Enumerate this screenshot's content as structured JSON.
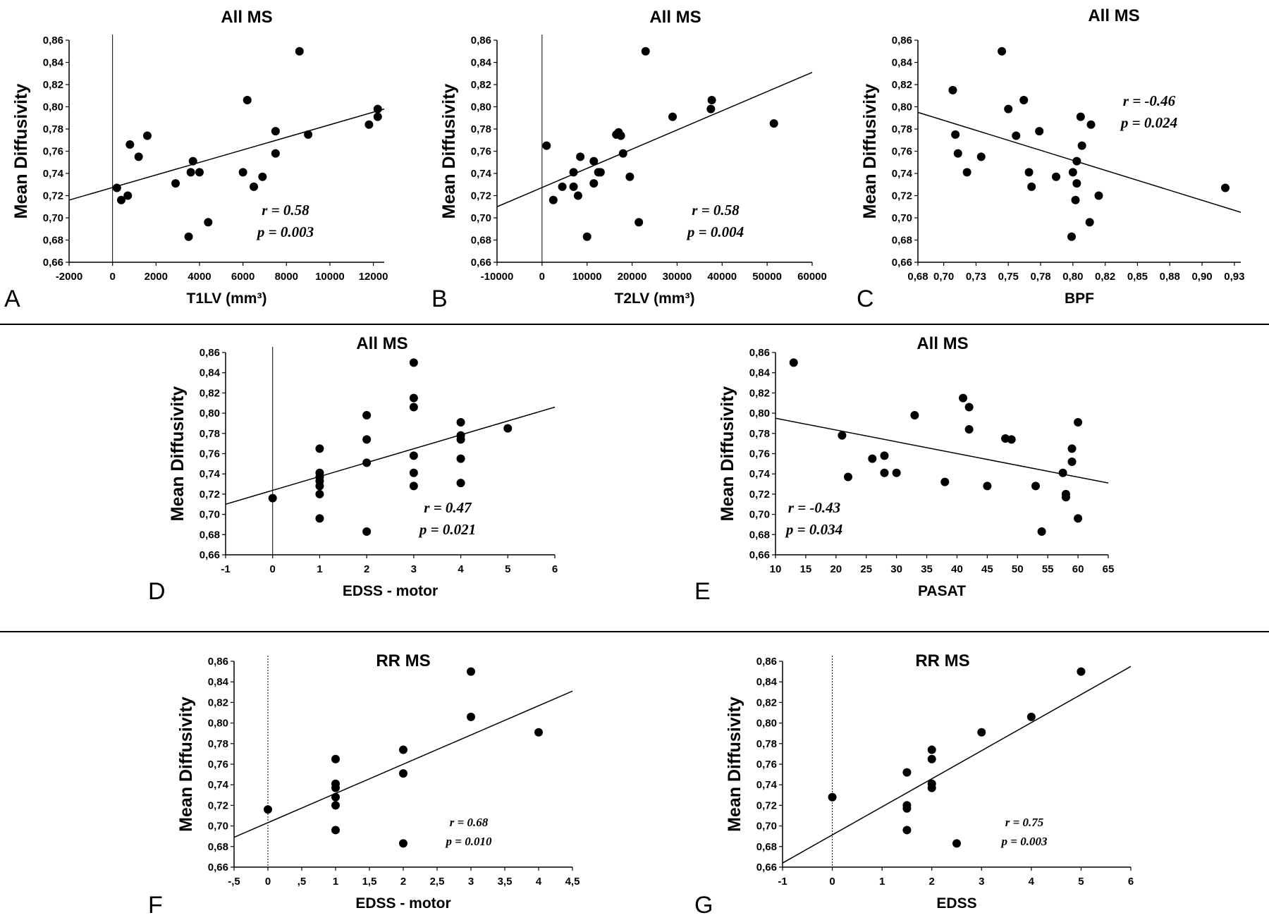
{
  "figure": {
    "separators": 2
  },
  "chart_data": [
    {
      "panel": "A",
      "type": "scatter",
      "title": "All MS",
      "xlabel": "T1LV (mm³)",
      "ylabel": "Mean Diffusivity",
      "xlim": [
        -2000,
        12500
      ],
      "ylim": [
        0.66,
        0.86
      ],
      "xticks": [
        -2000,
        0,
        2000,
        4000,
        6000,
        8000,
        10000,
        12000
      ],
      "xtick_labels": [
        "-2000",
        "0",
        "2000",
        "4000",
        "6000",
        "8000",
        "10000",
        "12000"
      ],
      "yticks": [
        0.66,
        0.68,
        0.7,
        0.72,
        0.74,
        0.76,
        0.78,
        0.8,
        0.82,
        0.84,
        0.86
      ],
      "ytick_labels": [
        "0,66",
        "0,68",
        "0,70",
        "0,72",
        "0,74",
        "0,76",
        "0,78",
        "0,80",
        "0,82",
        "0,84",
        "0,86"
      ],
      "vline": {
        "x": 0,
        "style": "solid"
      },
      "stats": [
        "r = 0.58",
        "p = 0.003"
      ],
      "stats_style": "bolditalic",
      "points": [
        [
          200,
          0.727
        ],
        [
          400,
          0.716
        ],
        [
          700,
          0.72
        ],
        [
          800,
          0.766
        ],
        [
          1200,
          0.755
        ],
        [
          1600,
          0.774
        ],
        [
          2900,
          0.731
        ],
        [
          3500,
          0.683
        ],
        [
          3600,
          0.741
        ],
        [
          3700,
          0.751
        ],
        [
          4000,
          0.741
        ],
        [
          4400,
          0.696
        ],
        [
          6000,
          0.741
        ],
        [
          6200,
          0.806
        ],
        [
          6500,
          0.728
        ],
        [
          6900,
          0.737
        ],
        [
          7500,
          0.758
        ],
        [
          7500,
          0.778
        ],
        [
          8600,
          0.85
        ],
        [
          9000,
          0.775
        ],
        [
          11800,
          0.784
        ],
        [
          12200,
          0.798
        ],
        [
          12200,
          0.791
        ]
      ],
      "fit": [
        [
          -2000,
          0.716
        ],
        [
          12500,
          0.798
        ]
      ]
    },
    {
      "panel": "B",
      "type": "scatter",
      "title": "All MS",
      "xlabel": "T2LV (mm³)",
      "ylabel": "Mean Diffusivity",
      "xlim": [
        -10000,
        60000
      ],
      "ylim": [
        0.66,
        0.86
      ],
      "xticks": [
        -10000,
        0,
        10000,
        20000,
        30000,
        40000,
        50000,
        60000
      ],
      "xtick_labels": [
        "-10000",
        "0",
        "10000",
        "20000",
        "30000",
        "40000",
        "50000",
        "60000"
      ],
      "yticks": [
        0.66,
        0.68,
        0.7,
        0.72,
        0.74,
        0.76,
        0.78,
        0.8,
        0.82,
        0.84,
        0.86
      ],
      "ytick_labels": [
        "0,66",
        "0,68",
        "0,70",
        "0,72",
        "0,74",
        "0,76",
        "0,78",
        "0,80",
        "0,82",
        "0,84",
        "0,86"
      ],
      "vline": {
        "x": 0,
        "style": "solid"
      },
      "stats": [
        "r = 0.58",
        "p = 0.004"
      ],
      "stats_style": "bolditalic",
      "points": [
        [
          1000,
          0.765
        ],
        [
          2500,
          0.716
        ],
        [
          4500,
          0.728
        ],
        [
          7000,
          0.741
        ],
        [
          7000,
          0.728
        ],
        [
          8000,
          0.72
        ],
        [
          8500,
          0.755
        ],
        [
          10000,
          0.683
        ],
        [
          11500,
          0.731
        ],
        [
          11500,
          0.751
        ],
        [
          12500,
          0.741
        ],
        [
          13000,
          0.741
        ],
        [
          16500,
          0.775
        ],
        [
          17000,
          0.777
        ],
        [
          17500,
          0.774
        ],
        [
          18000,
          0.758
        ],
        [
          19500,
          0.737
        ],
        [
          21500,
          0.696
        ],
        [
          23000,
          0.85
        ],
        [
          29000,
          0.791
        ],
        [
          37500,
          0.798
        ],
        [
          37700,
          0.806
        ],
        [
          51500,
          0.785
        ]
      ],
      "fit": [
        [
          -10000,
          0.71
        ],
        [
          60000,
          0.831
        ]
      ]
    },
    {
      "panel": "C",
      "type": "scatter",
      "title": "All MS",
      "xlabel": "BPF",
      "ylabel": "Mean Diffusivity",
      "xlim": [
        0.68,
        0.93
      ],
      "ylim": [
        0.66,
        0.86
      ],
      "xticks": [
        0.68,
        0.7,
        0.725,
        0.75,
        0.775,
        0.8,
        0.825,
        0.85,
        0.875,
        0.9,
        0.925
      ],
      "xtick_labels": [
        "0,68",
        "0,70",
        "0,73",
        "0,75",
        "0,78",
        "0,80",
        "0,82",
        "0,85",
        "0,88",
        "0,90",
        "0,93"
      ],
      "yticks": [
        0.66,
        0.68,
        0.7,
        0.72,
        0.74,
        0.76,
        0.78,
        0.8,
        0.82,
        0.84,
        0.86
      ],
      "ytick_labels": [
        "0,66",
        "0,68",
        "0,70",
        "0,72",
        "0,74",
        "0,76",
        "0,78",
        "0,80",
        "0,82",
        "0,84",
        "0,86"
      ],
      "vline": null,
      "stats": [
        "r = -0.46",
        "p = 0.024"
      ],
      "stats_style": "bolditalic",
      "points": [
        [
          0.707,
          0.815
        ],
        [
          0.709,
          0.775
        ],
        [
          0.711,
          0.758
        ],
        [
          0.718,
          0.741
        ],
        [
          0.729,
          0.755
        ],
        [
          0.745,
          0.85
        ],
        [
          0.75,
          0.798
        ],
        [
          0.756,
          0.774
        ],
        [
          0.762,
          0.806
        ],
        [
          0.766,
          0.741
        ],
        [
          0.768,
          0.728
        ],
        [
          0.774,
          0.778
        ],
        [
          0.787,
          0.737
        ],
        [
          0.8,
          0.741
        ],
        [
          0.802,
          0.716
        ],
        [
          0.803,
          0.751
        ],
        [
          0.806,
          0.791
        ],
        [
          0.807,
          0.765
        ],
        [
          0.799,
          0.683
        ],
        [
          0.813,
          0.696
        ],
        [
          0.814,
          0.784
        ],
        [
          0.82,
          0.72
        ],
        [
          0.803,
          0.731
        ],
        [
          0.918,
          0.727
        ]
      ],
      "fit": [
        [
          0.68,
          0.795
        ],
        [
          0.93,
          0.705
        ]
      ]
    },
    {
      "panel": "D",
      "type": "scatter",
      "title": "All MS",
      "xlabel": "EDSS - motor",
      "ylabel": "Mean Diffusivity",
      "xlim": [
        -1,
        6
      ],
      "ylim": [
        0.66,
        0.86
      ],
      "xticks": [
        -1,
        0,
        1,
        2,
        3,
        4,
        5,
        6
      ],
      "xtick_labels": [
        "-1",
        "0",
        "1",
        "2",
        "3",
        "4",
        "5",
        "6"
      ],
      "yticks": [
        0.66,
        0.68,
        0.7,
        0.72,
        0.74,
        0.76,
        0.78,
        0.8,
        0.82,
        0.84,
        0.86
      ],
      "ytick_labels": [
        "0,66",
        "0,68",
        "0,70",
        "0,72",
        "0,74",
        "0,76",
        "0,78",
        "0,80",
        "0,82",
        "0,84",
        "0,86"
      ],
      "vline": {
        "x": 0,
        "style": "solid"
      },
      "stats": [
        "r = 0.47",
        "p = 0.021"
      ],
      "stats_style": "bolditalic",
      "points": [
        [
          0,
          0.716
        ],
        [
          1,
          0.765
        ],
        [
          1,
          0.741
        ],
        [
          1,
          0.737
        ],
        [
          1,
          0.733
        ],
        [
          1,
          0.728
        ],
        [
          1,
          0.72
        ],
        [
          1,
          0.696
        ],
        [
          2,
          0.798
        ],
        [
          2,
          0.774
        ],
        [
          2,
          0.751
        ],
        [
          2,
          0.683
        ],
        [
          3,
          0.85
        ],
        [
          3,
          0.815
        ],
        [
          3,
          0.806
        ],
        [
          3,
          0.758
        ],
        [
          3,
          0.741
        ],
        [
          3,
          0.728
        ],
        [
          4,
          0.791
        ],
        [
          4,
          0.778
        ],
        [
          4,
          0.774
        ],
        [
          4,
          0.755
        ],
        [
          4,
          0.731
        ],
        [
          5,
          0.785
        ]
      ],
      "fit": [
        [
          -1,
          0.71
        ],
        [
          6,
          0.806
        ]
      ]
    },
    {
      "panel": "E",
      "type": "scatter",
      "title": "All MS",
      "xlabel": "PASAT",
      "ylabel": "Mean Diffusivity",
      "xlim": [
        10,
        65
      ],
      "ylim": [
        0.66,
        0.86
      ],
      "xticks": [
        10,
        15,
        20,
        25,
        30,
        35,
        40,
        45,
        50,
        55,
        60,
        65
      ],
      "xtick_labels": [
        "10",
        "15",
        "20",
        "25",
        "30",
        "35",
        "40",
        "45",
        "50",
        "55",
        "60",
        "65"
      ],
      "yticks": [
        0.66,
        0.68,
        0.7,
        0.72,
        0.74,
        0.76,
        0.78,
        0.8,
        0.82,
        0.84,
        0.86
      ],
      "ytick_labels": [
        "0,66",
        "0,68",
        "0,70",
        "0,72",
        "0,74",
        "0,76",
        "0,78",
        "0,80",
        "0,82",
        "0,84",
        "0,86"
      ],
      "vline": null,
      "stats": [
        "r = -0.43",
        "p = 0.034"
      ],
      "stats_style": "bolditalic",
      "points": [
        [
          13,
          0.85
        ],
        [
          21,
          0.778
        ],
        [
          22,
          0.737
        ],
        [
          26,
          0.755
        ],
        [
          28,
          0.758
        ],
        [
          28,
          0.741
        ],
        [
          30,
          0.741
        ],
        [
          33,
          0.798
        ],
        [
          38,
          0.732
        ],
        [
          41,
          0.815
        ],
        [
          42,
          0.806
        ],
        [
          42,
          0.784
        ],
        [
          45,
          0.728
        ],
        [
          48,
          0.775
        ],
        [
          49,
          0.774
        ],
        [
          53,
          0.728
        ],
        [
          54,
          0.683
        ],
        [
          57.5,
          0.741
        ],
        [
          58,
          0.72
        ],
        [
          58,
          0.717
        ],
        [
          59,
          0.765
        ],
        [
          59,
          0.752
        ],
        [
          60,
          0.791
        ],
        [
          60,
          0.696
        ]
      ],
      "fit": [
        [
          10,
          0.795
        ],
        [
          65,
          0.731
        ]
      ]
    },
    {
      "panel": "F",
      "type": "scatter",
      "title": "RR MS",
      "xlabel": "EDSS - motor",
      "ylabel": "Mean Diffusivity",
      "xlim": [
        -0.5,
        4.5
      ],
      "ylim": [
        0.66,
        0.86
      ],
      "xticks": [
        -0.5,
        0,
        0.5,
        1,
        1.5,
        2,
        2.5,
        3,
        3.5,
        4,
        4.5
      ],
      "xtick_labels": [
        "-,5",
        "0",
        ",5",
        "1",
        "1,5",
        "2",
        "2,5",
        "3",
        "3,5",
        "4",
        "4,5"
      ],
      "yticks": [
        0.66,
        0.68,
        0.7,
        0.72,
        0.74,
        0.76,
        0.78,
        0.8,
        0.82,
        0.84,
        0.86
      ],
      "ytick_labels": [
        "0,66",
        "0,68",
        "0,70",
        "0,72",
        "0,74",
        "0,76",
        "0,78",
        "0,80",
        "0,82",
        "0,84",
        "0,86"
      ],
      "vline": {
        "x": 0,
        "style": "dotted"
      },
      "stats": [
        "r = 0.68",
        "p = 0.010"
      ],
      "stats_style": "bold",
      "points": [
        [
          0,
          0.716
        ],
        [
          1,
          0.765
        ],
        [
          1,
          0.741
        ],
        [
          1,
          0.737
        ],
        [
          1,
          0.728
        ],
        [
          1,
          0.72
        ],
        [
          1,
          0.696
        ],
        [
          2,
          0.774
        ],
        [
          2,
          0.751
        ],
        [
          2,
          0.683
        ],
        [
          3,
          0.85
        ],
        [
          3,
          0.806
        ],
        [
          4,
          0.791
        ]
      ],
      "fit": [
        [
          -0.5,
          0.689
        ],
        [
          4.5,
          0.831
        ]
      ]
    },
    {
      "panel": "G",
      "type": "scatter",
      "title": "RR MS",
      "xlabel": "EDSS",
      "ylabel": "Mean Diffusivity",
      "xlim": [
        -1,
        6
      ],
      "ylim": [
        0.66,
        0.86
      ],
      "xticks": [
        -1,
        0,
        1,
        2,
        3,
        4,
        5,
        6
      ],
      "xtick_labels": [
        "-1",
        "0",
        "1",
        "2",
        "3",
        "4",
        "5",
        "6"
      ],
      "yticks": [
        0.66,
        0.68,
        0.7,
        0.72,
        0.74,
        0.76,
        0.78,
        0.8,
        0.82,
        0.84,
        0.86
      ],
      "ytick_labels": [
        "0,66",
        "0,68",
        "0,70",
        "0,72",
        "0,74",
        "0,76",
        "0,78",
        "0,80",
        "0,82",
        "0,84",
        "0,86"
      ],
      "vline": {
        "x": 0,
        "style": "dotted"
      },
      "stats": [
        "r = 0.75",
        "p = 0.003"
      ],
      "stats_style": "bold",
      "points": [
        [
          0,
          0.728
        ],
        [
          1.5,
          0.752
        ],
        [
          1.5,
          0.72
        ],
        [
          1.5,
          0.717
        ],
        [
          1.5,
          0.696
        ],
        [
          2,
          0.774
        ],
        [
          2,
          0.765
        ],
        [
          2,
          0.741
        ],
        [
          2,
          0.737
        ],
        [
          2.5,
          0.683
        ],
        [
          3,
          0.791
        ],
        [
          4,
          0.806
        ],
        [
          5,
          0.85
        ]
      ],
      "fit": [
        [
          -1,
          0.664
        ],
        [
          6,
          0.855
        ]
      ]
    }
  ]
}
